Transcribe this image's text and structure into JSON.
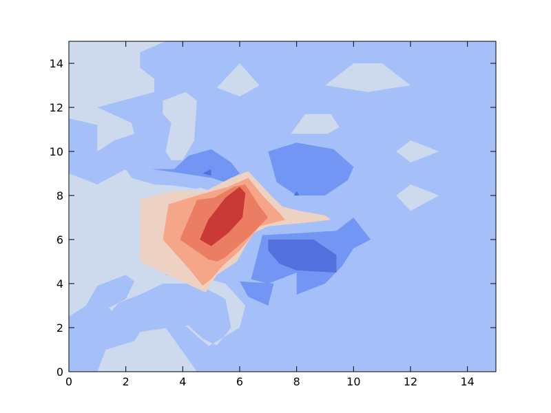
{
  "chart_data": {
    "type": "contourf",
    "title": "",
    "xlabel": "",
    "ylabel": "",
    "xlim": [
      0,
      15
    ],
    "ylim": [
      0,
      15
    ],
    "grid": false,
    "colormap": "coolwarm",
    "x_ticks": [
      0,
      2,
      4,
      6,
      8,
      10,
      12,
      14
    ],
    "y_ticks": [
      0,
      2,
      4,
      6,
      8,
      10,
      12,
      14
    ],
    "x_tick_labels": [
      "0",
      "2",
      "4",
      "6",
      "8",
      "10",
      "12",
      "14"
    ],
    "y_tick_labels": [
      "0",
      "2",
      "4",
      "6",
      "8",
      "10",
      "12",
      "14"
    ],
    "levels": [
      {
        "color": "#3b4cc0"
      },
      {
        "color": "#5470de"
      },
      {
        "color": "#7396f5"
      },
      {
        "color": "#a5c0f9"
      },
      {
        "color": "#cdd9ec"
      },
      {
        "color": "#edd1c2"
      },
      {
        "color": "#f6a688"
      },
      {
        "color": "#eb7d62"
      },
      {
        "color": "#c93a36"
      }
    ],
    "background_color": "#a5c0f9",
    "regions": [
      {
        "level": 4,
        "points": [
          [
            0,
            15
          ],
          [
            3.4,
            15
          ],
          [
            2.5,
            14.5
          ],
          [
            2.5,
            13.8
          ],
          [
            3,
            13.3
          ],
          [
            3,
            12.7
          ],
          [
            1,
            12
          ],
          [
            2.2,
            11.3
          ],
          [
            2.3,
            10.8
          ],
          [
            1.6,
            10.5
          ],
          [
            1,
            10
          ],
          [
            1,
            11.2
          ],
          [
            0,
            11.5
          ]
        ]
      },
      {
        "level": 4,
        "points": [
          [
            0,
            9
          ],
          [
            1,
            8.5
          ],
          [
            2,
            9.2
          ],
          [
            2.2,
            8.8
          ],
          [
            3,
            8.5
          ],
          [
            4.5,
            8.4
          ],
          [
            5.5,
            8
          ],
          [
            5.8,
            7
          ],
          [
            5.3,
            6
          ],
          [
            4.5,
            5.3
          ],
          [
            4,
            4.7
          ],
          [
            3,
            4.2
          ],
          [
            2,
            3.5
          ],
          [
            1,
            2
          ],
          [
            0,
            1
          ]
        ]
      },
      {
        "level": 4,
        "points": [
          [
            1.5,
            3
          ],
          [
            2.5,
            3.5
          ],
          [
            3.3,
            4
          ],
          [
            4.5,
            4
          ],
          [
            5.5,
            3.3
          ],
          [
            5.7,
            2
          ],
          [
            5.2,
            1.2
          ],
          [
            4.7,
            1.5
          ],
          [
            4.2,
            2.1
          ],
          [
            3.5,
            2
          ],
          [
            2.5,
            1.8
          ],
          [
            2.3,
            1.4
          ],
          [
            1.3,
            1
          ],
          [
            1,
            0
          ],
          [
            4.5,
            0
          ],
          [
            4.7,
            1
          ],
          [
            6,
            2
          ],
          [
            6.2,
            3
          ],
          [
            5.5,
            4
          ],
          [
            4,
            4.5
          ],
          [
            3,
            4.3
          ],
          [
            2,
            4
          ]
        ]
      },
      {
        "level": 3,
        "points": [
          [
            0,
            2.5
          ],
          [
            0.6,
            3
          ],
          [
            1,
            3.9
          ],
          [
            2,
            4.4
          ],
          [
            2.3,
            4.1
          ],
          [
            2,
            3.3
          ],
          [
            1.4,
            2.9
          ],
          [
            2.2,
            1.9
          ],
          [
            2.3,
            1.4
          ],
          [
            1,
            1
          ],
          [
            0,
            1
          ]
        ]
      },
      {
        "level": 3,
        "points": [
          [
            3.4,
            2
          ],
          [
            4,
            2.2
          ],
          [
            4.6,
            1.5
          ],
          [
            4.9,
            1.2
          ],
          [
            4.6,
            0.4
          ],
          [
            4.5,
            0
          ]
        ]
      },
      {
        "level": 3,
        "points": [
          [
            0,
            9.3
          ],
          [
            1,
            8.6
          ],
          [
            1.7,
            9.3
          ],
          [
            2.1,
            9.1
          ],
          [
            2.5,
            8.8
          ],
          [
            3.4,
            8.5
          ],
          [
            4.5,
            8.3
          ],
          [
            5,
            8.6
          ],
          [
            5.5,
            8.4
          ],
          [
            4.5,
            9
          ],
          [
            3.1,
            9.2
          ]
        ]
      },
      {
        "level": 3,
        "points": [
          [
            1.6,
            9.6
          ],
          [
            2.1,
            9.9
          ],
          [
            2.6,
            9.7
          ]
        ]
      },
      {
        "level": 4,
        "points": [
          [
            3.3,
            12.3
          ],
          [
            4.1,
            12.7
          ],
          [
            4.5,
            12.3
          ],
          [
            4.4,
            10.5
          ],
          [
            4,
            9.6
          ],
          [
            3.6,
            9.6
          ],
          [
            3.4,
            10
          ],
          [
            3.6,
            11.3
          ],
          [
            3.3,
            11.7
          ]
        ]
      },
      {
        "level": 4,
        "points": [
          [
            5.2,
            12.9
          ],
          [
            6,
            14
          ],
          [
            6.7,
            13
          ],
          [
            6,
            12.5
          ]
        ]
      },
      {
        "level": 4,
        "points": [
          [
            7.8,
            10.8
          ],
          [
            8.3,
            11.7
          ],
          [
            9.2,
            11.7
          ],
          [
            9.5,
            11.1
          ],
          [
            9.1,
            10.8
          ],
          [
            8.6,
            10.8
          ],
          [
            8,
            10.8
          ]
        ]
      },
      {
        "level": 4,
        "points": [
          [
            9,
            13
          ],
          [
            10,
            14
          ],
          [
            11,
            14
          ],
          [
            12,
            13
          ],
          [
            10.5,
            12.7
          ]
        ]
      },
      {
        "level": 4,
        "points": [
          [
            11.5,
            10
          ],
          [
            12,
            10.5
          ],
          [
            13,
            10
          ],
          [
            12,
            9.5
          ]
        ]
      },
      {
        "level": 4,
        "points": [
          [
            11.5,
            8
          ],
          [
            12,
            8.5
          ],
          [
            13,
            8
          ],
          [
            12,
            7.3
          ]
        ]
      },
      {
        "level": 2,
        "points": [
          [
            2.9,
            9.2
          ],
          [
            4,
            9
          ],
          [
            5,
            8.8
          ],
          [
            5.5,
            8.6
          ],
          [
            6,
            9
          ],
          [
            5.7,
            9.5
          ],
          [
            5,
            10.1
          ],
          [
            4.2,
            9.8
          ],
          [
            3.7,
            9.2
          ]
        ]
      },
      {
        "level": 1,
        "points": [
          [
            4.7,
            9
          ],
          [
            5,
            9.2
          ],
          [
            5,
            8.9
          ]
        ]
      },
      {
        "level": 2,
        "points": [
          [
            7,
            10
          ],
          [
            8,
            10.4
          ],
          [
            9.3,
            10.1
          ],
          [
            10,
            9.3
          ],
          [
            9.8,
            8.7
          ],
          [
            9,
            8
          ],
          [
            8,
            8
          ],
          [
            7.3,
            8.6
          ]
        ]
      },
      {
        "level": 1,
        "points": [
          [
            8,
            8.2
          ],
          [
            8.1,
            8
          ],
          [
            7.9,
            8
          ]
        ]
      },
      {
        "level": 2,
        "points": [
          [
            6.8,
            6.2
          ],
          [
            8.2,
            6.3
          ],
          [
            9.4,
            6.4
          ],
          [
            10,
            7
          ],
          [
            10.6,
            6
          ],
          [
            10,
            5.6
          ],
          [
            9.6,
            4.8
          ],
          [
            9,
            4
          ],
          [
            8,
            3.5
          ],
          [
            8,
            4.5
          ],
          [
            7,
            4
          ],
          [
            6.4,
            4.2
          ],
          [
            6.6,
            5.2
          ]
        ]
      },
      {
        "level": 2,
        "points": [
          [
            6,
            4.1
          ],
          [
            6.3,
            3.4
          ],
          [
            7,
            3
          ],
          [
            7.2,
            4
          ]
        ]
      },
      {
        "level": 1,
        "points": [
          [
            7,
            6
          ],
          [
            8.6,
            6
          ],
          [
            9.4,
            5.3
          ],
          [
            9.4,
            4.5
          ],
          [
            8,
            4.6
          ],
          [
            7.4,
            4.9
          ],
          [
            7,
            5.5
          ]
        ]
      },
      {
        "level": 5,
        "points": [
          [
            2.5,
            7.8
          ],
          [
            3.6,
            8.2
          ],
          [
            4.8,
            8.2
          ],
          [
            5.7,
            8.8
          ],
          [
            6.3,
            9.1
          ],
          [
            7.1,
            8
          ],
          [
            7.5,
            7.5
          ],
          [
            8.1,
            7.3
          ],
          [
            9,
            7.1
          ],
          [
            9.2,
            6.9
          ],
          [
            8.6,
            6.8
          ],
          [
            7.8,
            6.7
          ],
          [
            7,
            6.6
          ],
          [
            6.5,
            6.3
          ],
          [
            6.2,
            5.7
          ],
          [
            5.9,
            5
          ],
          [
            5.2,
            4.4
          ],
          [
            4.8,
            3.6
          ],
          [
            3.8,
            4.2
          ],
          [
            2.5,
            5
          ]
        ]
      },
      {
        "level": 6,
        "points": [
          [
            3.5,
            7.6
          ],
          [
            4.5,
            8
          ],
          [
            5.6,
            8.4
          ],
          [
            6.3,
            8.8
          ],
          [
            6.8,
            8
          ],
          [
            7.4,
            7.2
          ],
          [
            7.6,
            6.9
          ],
          [
            6.7,
            6.6
          ],
          [
            6,
            5.5
          ],
          [
            5.4,
            4.8
          ],
          [
            5,
            4.2
          ],
          [
            4.7,
            3.9
          ],
          [
            4.2,
            4.7
          ],
          [
            3.3,
            6
          ]
        ]
      },
      {
        "level": 7,
        "points": [
          [
            3.9,
            6
          ],
          [
            4.5,
            7.8
          ],
          [
            5.1,
            7.9
          ],
          [
            5.8,
            8.4
          ],
          [
            6.2,
            8.5
          ],
          [
            6.7,
            7.5
          ],
          [
            7,
            7
          ],
          [
            6.3,
            6.1
          ],
          [
            5.5,
            5.2
          ],
          [
            5.2,
            5
          ],
          [
            4.9,
            5.1
          ]
        ]
      },
      {
        "level": 8,
        "points": [
          [
            4.6,
            6
          ],
          [
            4.9,
            6.9
          ],
          [
            5.5,
            7.9
          ],
          [
            6,
            8.4
          ],
          [
            6.2,
            8.1
          ],
          [
            6.1,
            7
          ],
          [
            5.6,
            6.3
          ],
          [
            5,
            5.7
          ]
        ]
      }
    ]
  }
}
